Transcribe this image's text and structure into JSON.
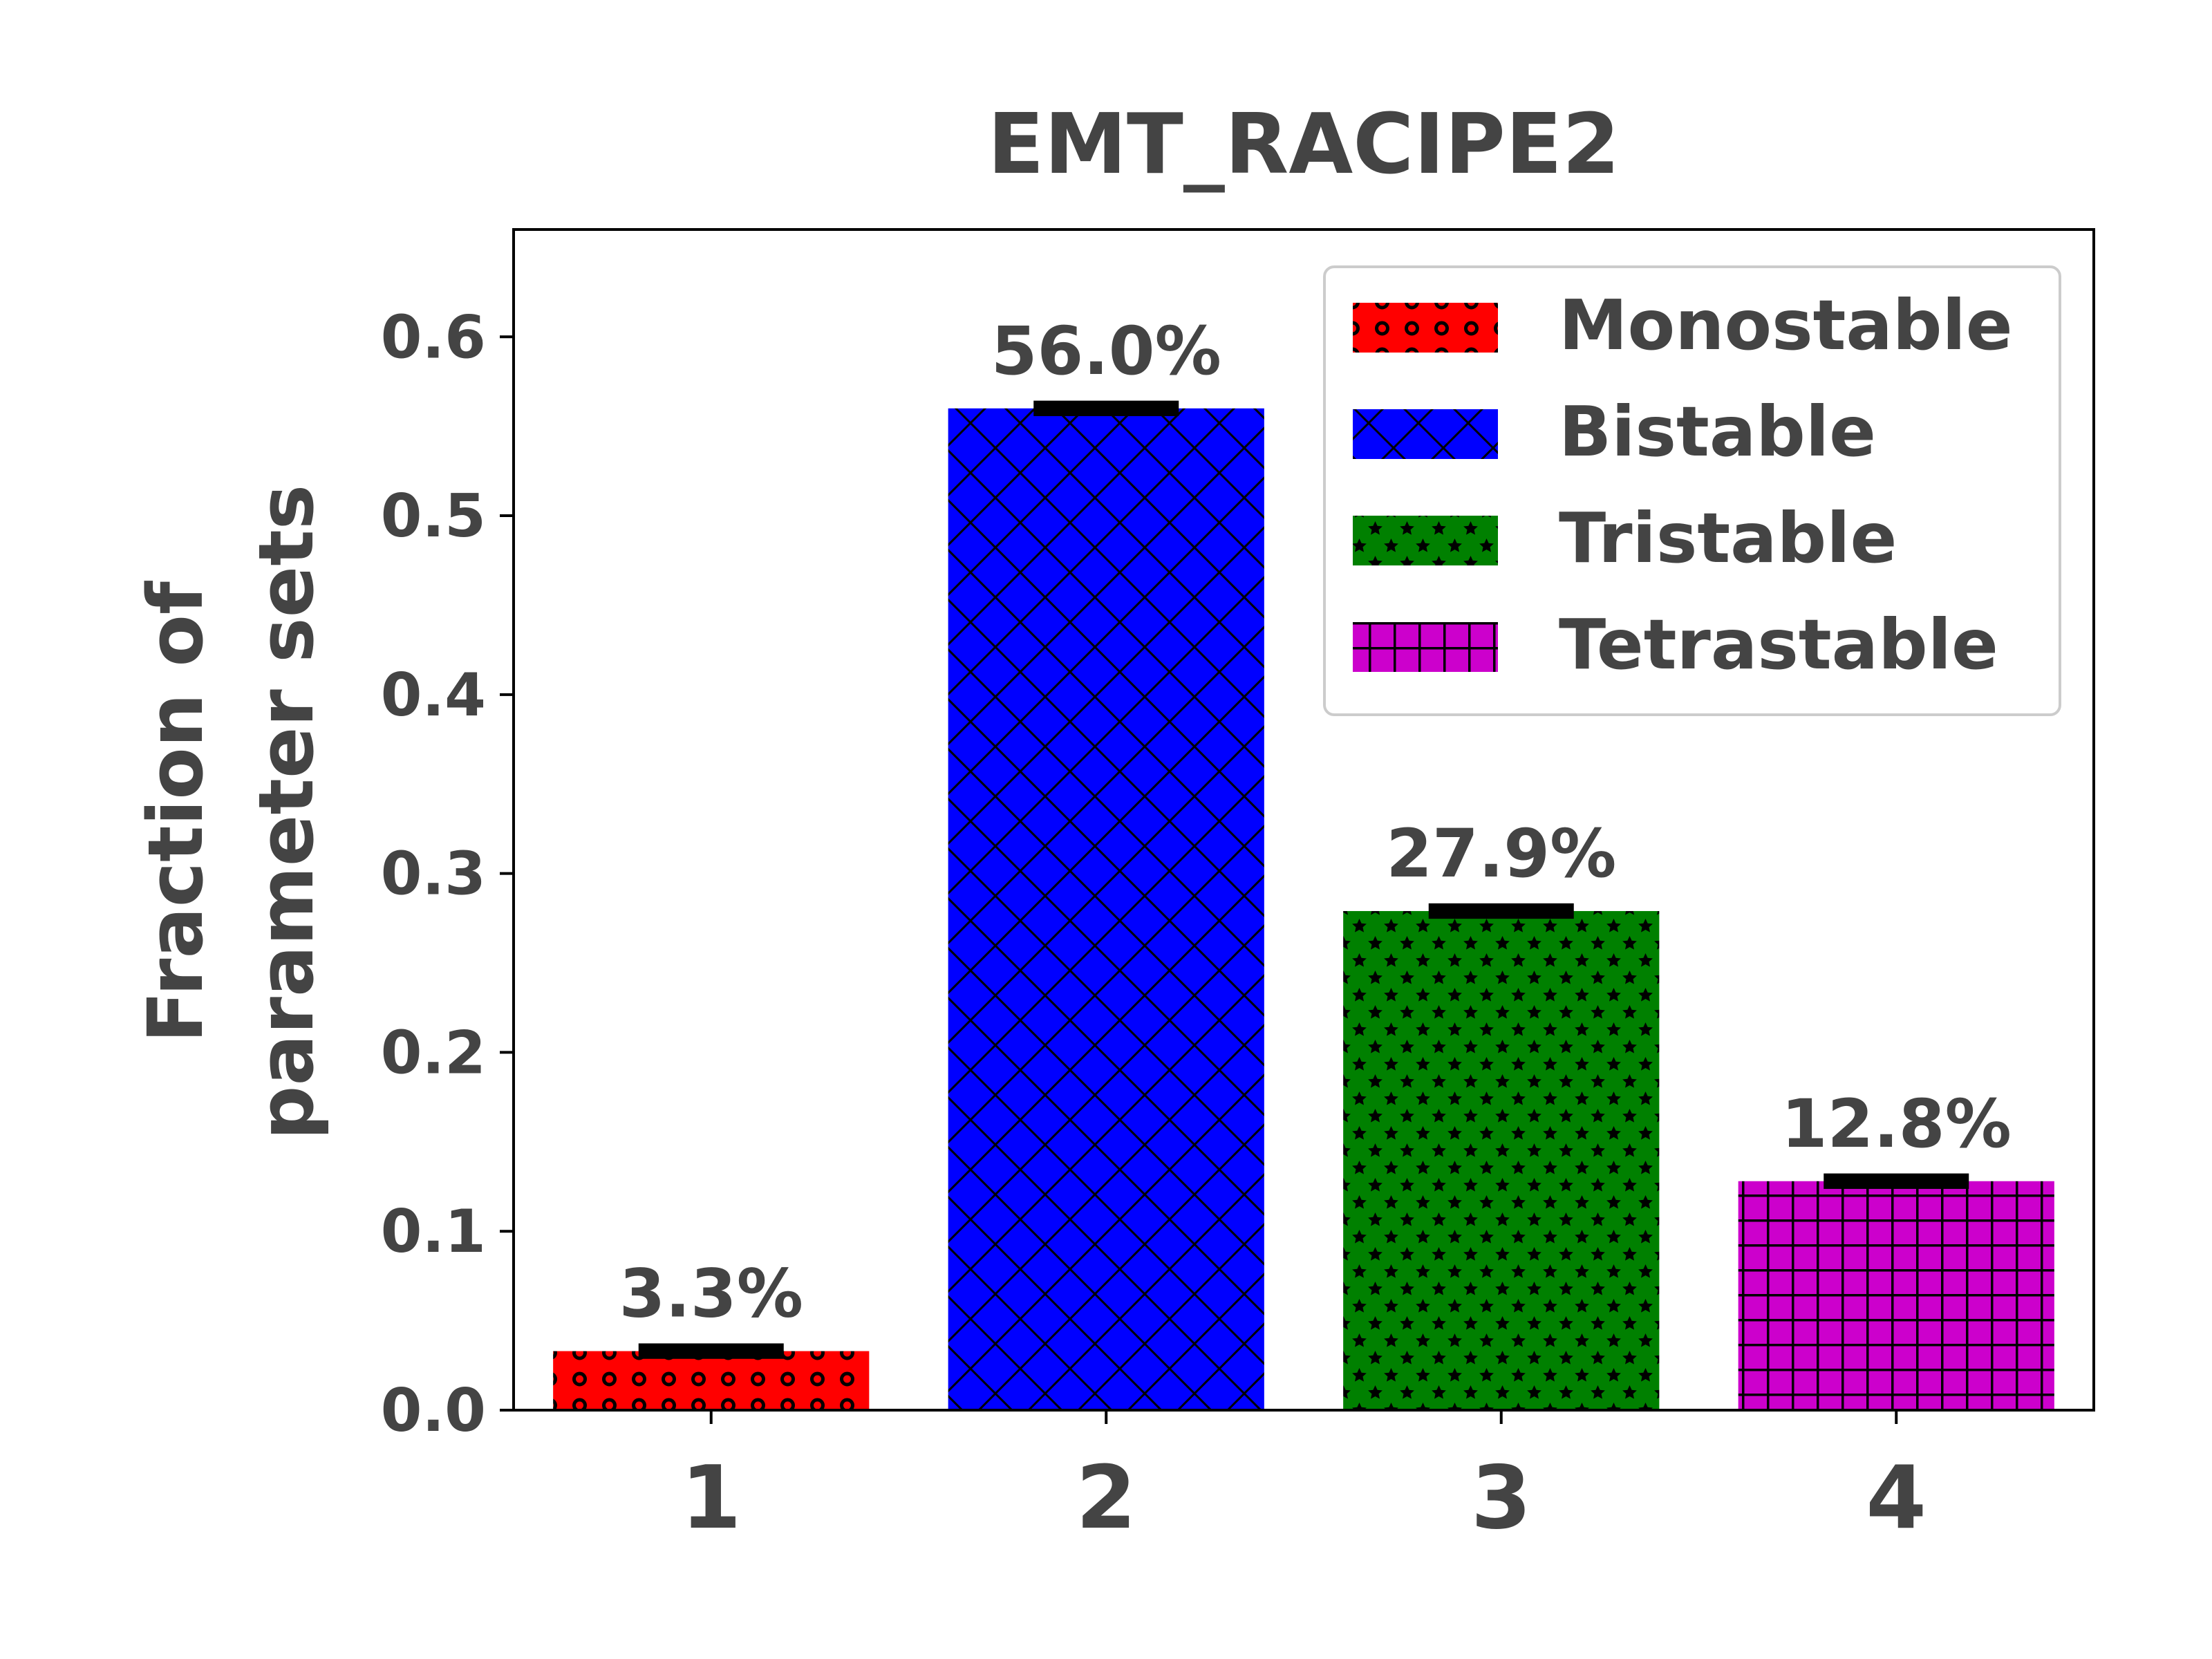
{
  "chart_data": {
    "type": "bar",
    "title": "EMT_RACIPE2",
    "xlabel": "",
    "ylabel_lines": [
      "Fraction of",
      "parameter sets"
    ],
    "categories": [
      "1",
      "2",
      "3",
      "4"
    ],
    "values": [
      0.033,
      0.56,
      0.279,
      0.128
    ],
    "errors": [
      0.002,
      0.002,
      0.002,
      0.002
    ],
    "data_labels": [
      "3.3%",
      "56.0%",
      "27.9%",
      "12.8%"
    ],
    "ylim": [
      0,
      0.66
    ],
    "yticks": [
      0.0,
      0.1,
      0.2,
      0.3,
      0.4,
      0.5,
      0.6
    ],
    "ytick_labels": [
      "0.0",
      "0.1",
      "0.2",
      "0.3",
      "0.4",
      "0.5",
      "0.6"
    ],
    "grid": false,
    "legend_position": "top-right",
    "series": [
      {
        "name": "Monostable",
        "color": "#ff0000",
        "pattern": "circles"
      },
      {
        "name": "Bistable",
        "color": "#0000ff",
        "pattern": "crosshatch"
      },
      {
        "name": "Tristable",
        "color": "#008000",
        "pattern": "stars"
      },
      {
        "name": "Tetrastable",
        "color": "#cc00cc",
        "pattern": "grid"
      }
    ]
  }
}
